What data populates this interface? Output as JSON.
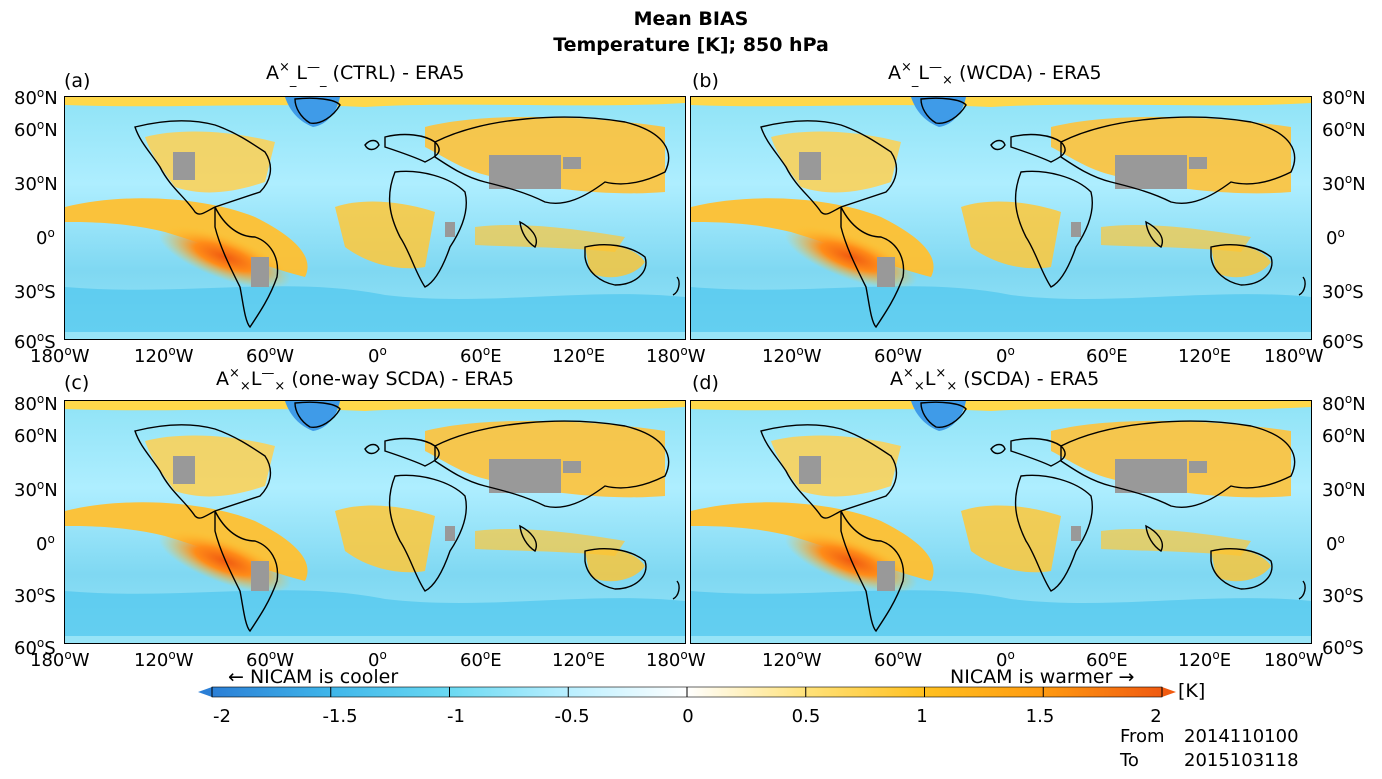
{
  "figure": {
    "title": "Mean BIAS",
    "subtitle": "Temperature [K]; 850 hPa"
  },
  "panels": [
    {
      "label": "(a)",
      "base": "A",
      "sup": "×",
      "sub": "_",
      "l": "L",
      "lsup": "—",
      "lsub": "_",
      "rest": " (CTRL) - ERA5"
    },
    {
      "label": "(b)",
      "base": "A",
      "sup": "×",
      "sub": "_",
      "l": "L",
      "lsup": "—",
      "lsub": "×",
      "rest": " (WCDA) - ERA5"
    },
    {
      "label": "(c)",
      "base": "A",
      "sup": "×",
      "sub": "×",
      "l": "L",
      "lsup": "—",
      "lsub": "×",
      "rest": " (one-way SCDA) - ERA5"
    },
    {
      "label": "(d)",
      "base": "A",
      "sup": "×",
      "sub": "×",
      "l": "L",
      "lsup": "×",
      "lsub": "×",
      "rest": " (SCDA) - ERA5"
    }
  ],
  "axes": {
    "lon_ticks": [
      "180",
      "120",
      "60",
      "0",
      "60",
      "120",
      "180"
    ],
    "lon_suffix": [
      "W",
      "W",
      "W",
      "",
      "E",
      "E",
      "W"
    ],
    "lat_ticks": [
      "80",
      "60",
      "30",
      "0",
      "30",
      "60"
    ],
    "lat_suffix": [
      "N",
      "N",
      "N",
      "",
      "S",
      "S"
    ],
    "degree": "o"
  },
  "colorbar": {
    "left_note": "← NICAM is cooler",
    "right_note": "NICAM is warmer →",
    "unit": "[K]",
    "ticks": [
      "-2",
      "-1.5",
      "-1",
      "-0.5",
      "0",
      "0.5",
      "1",
      "1.5",
      "2"
    ],
    "colors": [
      "#2b7fd6",
      "#3fb6ea",
      "#6ad9f2",
      "#b9efff",
      "#ffffff",
      "#ffe27a",
      "#ffc020",
      "#ff9a10",
      "#f05a10"
    ]
  },
  "period": {
    "from_label": "From",
    "from_value": "2014110100",
    "to_label": "To",
    "to_value": "2015103118"
  },
  "chart_data": {
    "type": "heatmap",
    "title": "Mean BIAS — Temperature [K]; 850 hPa",
    "variable": "Temperature bias (NICAM - ERA5)",
    "units": "K",
    "value_range": [
      -2,
      2
    ],
    "lon_range": [
      -180,
      180
    ],
    "lat_range": [
      -60,
      80
    ],
    "panels": [
      "(a) CTRL - ERA5",
      "(b) WCDA - ERA5",
      "(c) one-way SCDA - ERA5",
      "(d) SCDA - ERA5"
    ],
    "missing_color": "gray (terrain above 850 hPa)"
  }
}
